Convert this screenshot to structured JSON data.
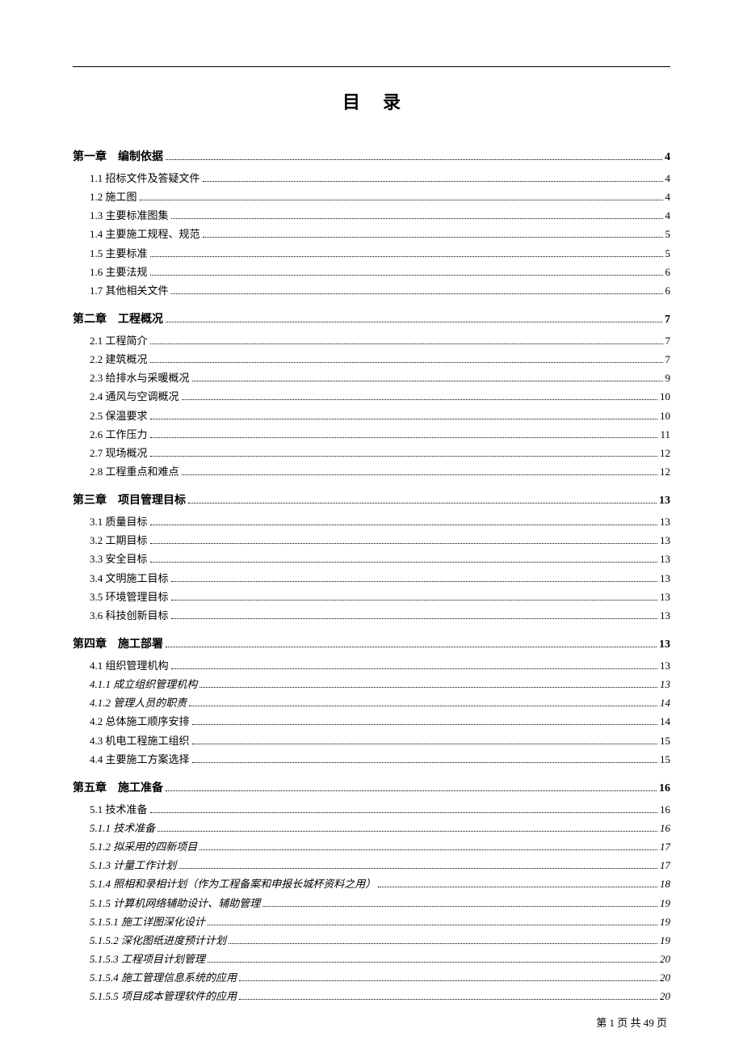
{
  "title": "目录",
  "footer": "第 1 页 共 49 页",
  "colors": {
    "text": "#000000",
    "background": "#ffffff"
  },
  "typography": {
    "title_fontsize": 22,
    "chapter_fontsize": 14,
    "sub_fontsize": 13,
    "body_font": "SimSun",
    "italic_font": "KaiTi"
  },
  "toc": [
    {
      "type": "chapter",
      "label": "第一章　编制依据",
      "page": "4"
    },
    {
      "type": "sub",
      "label": "1.1 招标文件及答疑文件",
      "page": "4"
    },
    {
      "type": "sub",
      "label": "1.2 施工图",
      "page": "4"
    },
    {
      "type": "sub",
      "label": "1.3 主要标准图集",
      "page": "4"
    },
    {
      "type": "sub",
      "label": "1.4 主要施工规程、规范",
      "page": "5"
    },
    {
      "type": "sub",
      "label": "1.5 主要标准",
      "page": "5"
    },
    {
      "type": "sub",
      "label": "1.6 主要法规",
      "page": "6"
    },
    {
      "type": "sub",
      "label": "1.7 其他相关文件",
      "page": "6"
    },
    {
      "type": "chapter",
      "label": "第二章　工程概况",
      "page": "7"
    },
    {
      "type": "sub",
      "label": "2.1 工程简介",
      "page": "7"
    },
    {
      "type": "sub",
      "label": "2.2 建筑概况",
      "page": "7"
    },
    {
      "type": "sub",
      "label": "2.3 给排水与采暖概况",
      "page": "9"
    },
    {
      "type": "sub",
      "label": "2.4 通风与空调概况",
      "page": "10"
    },
    {
      "type": "sub",
      "label": "2.5 保温要求",
      "page": "10"
    },
    {
      "type": "sub",
      "label": "2.6 工作压力",
      "page": "11"
    },
    {
      "type": "sub",
      "label": "2.7 现场概况",
      "page": "12"
    },
    {
      "type": "sub",
      "label": "2.8 工程重点和难点",
      "page": "12"
    },
    {
      "type": "chapter",
      "label": "第三章　项目管理目标",
      "page": "13"
    },
    {
      "type": "sub",
      "label": "3.1 质量目标",
      "page": "13"
    },
    {
      "type": "sub",
      "label": "3.2 工期目标",
      "page": "13"
    },
    {
      "type": "sub",
      "label": "3.3 安全目标",
      "page": "13"
    },
    {
      "type": "sub",
      "label": "3.4 文明施工目标",
      "page": "13"
    },
    {
      "type": "sub",
      "label": "3.5 环境管理目标",
      "page": "13"
    },
    {
      "type": "sub",
      "label": "3.6 科技创新目标",
      "page": "13"
    },
    {
      "type": "chapter",
      "label": "第四章　施工部署",
      "page": "13"
    },
    {
      "type": "sub",
      "label": "4.1 组织管理机构",
      "page": "13"
    },
    {
      "type": "subsub",
      "label": "4.1.1 成立组织管理机构",
      "page": "13"
    },
    {
      "type": "subsub",
      "label": "4.1.2 管理人员的职责",
      "page": "14"
    },
    {
      "type": "sub",
      "label": "4.2 总体施工顺序安排",
      "page": "14"
    },
    {
      "type": "sub",
      "label": "4.3 机电工程施工组织",
      "page": "15"
    },
    {
      "type": "sub",
      "label": "4.4 主要施工方案选择",
      "page": "15"
    },
    {
      "type": "chapter",
      "label": "第五章　施工准备",
      "page": "16"
    },
    {
      "type": "sub",
      "label": "5.1 技术准备",
      "page": "16"
    },
    {
      "type": "subsub",
      "label": "5.1.1 技术准备",
      "page": "16"
    },
    {
      "type": "subsub",
      "label": "5.1.2 拟采用的四新项目",
      "page": "17"
    },
    {
      "type": "subsub",
      "label": "5.1.3 计量工作计划",
      "page": "17"
    },
    {
      "type": "subsub",
      "label": "5.1.4 照相和录相计划（作为工程备案和申报长城杯资料之用）",
      "page": "18"
    },
    {
      "type": "subsub",
      "label": "5.1.5 计算机网络辅助设计、辅助管理",
      "page": "19"
    },
    {
      "type": "subsub",
      "label": "5.1.5.1 施工详图深化设计",
      "page": "19"
    },
    {
      "type": "subsub",
      "label": "5.1.5.2 深化图纸进度预计计划",
      "page": "19"
    },
    {
      "type": "subsub",
      "label": "5.1.5.3 工程项目计划管理",
      "page": "20"
    },
    {
      "type": "subsub",
      "label": "5.1.5.4 施工管理信息系统的应用",
      "page": "20"
    },
    {
      "type": "subsub",
      "label": "5.1.5.5 项目成本管理软件的应用",
      "page": "20"
    }
  ]
}
